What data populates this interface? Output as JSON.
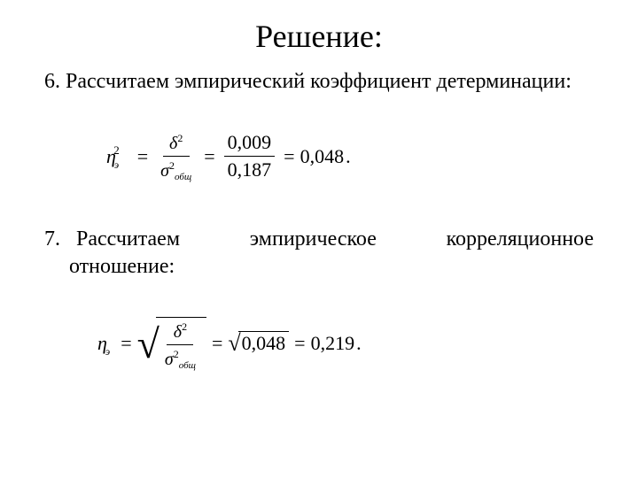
{
  "title": "Решение:",
  "item6": {
    "number": "6.",
    "text": "Рассчитаем эмпирический коэффициент детерминации:"
  },
  "formula1": {
    "lhs_symbol": "η",
    "lhs_sub": "э",
    "lhs_sup": "2",
    "eq": "=",
    "frac1_top_sym": "δ",
    "frac1_top_sup": "2",
    "frac1_bot_sym": "σ",
    "frac1_bot_sup": "2",
    "frac1_bot_sub": "общ",
    "frac2_top": "0,009",
    "frac2_bot": "0,187",
    "result": "0,048",
    "period": "."
  },
  "item7": {
    "number": "7.",
    "w1": "Рассчитаем",
    "w2": "эмпирическое",
    "w3": "корреляционное",
    "line2": "отношение:"
  },
  "formula2": {
    "lhs_symbol": "η",
    "lhs_sub": "э",
    "eq": "=",
    "frac_top_sym": "δ",
    "frac_top_sup": "2",
    "frac_bot_sym": "σ",
    "frac_bot_sup": "2",
    "frac_bot_sub": "общ",
    "sqrt_val": "0,048",
    "result": "0,219",
    "period": "."
  },
  "colors": {
    "text": "#000000",
    "background": "#ffffff"
  }
}
